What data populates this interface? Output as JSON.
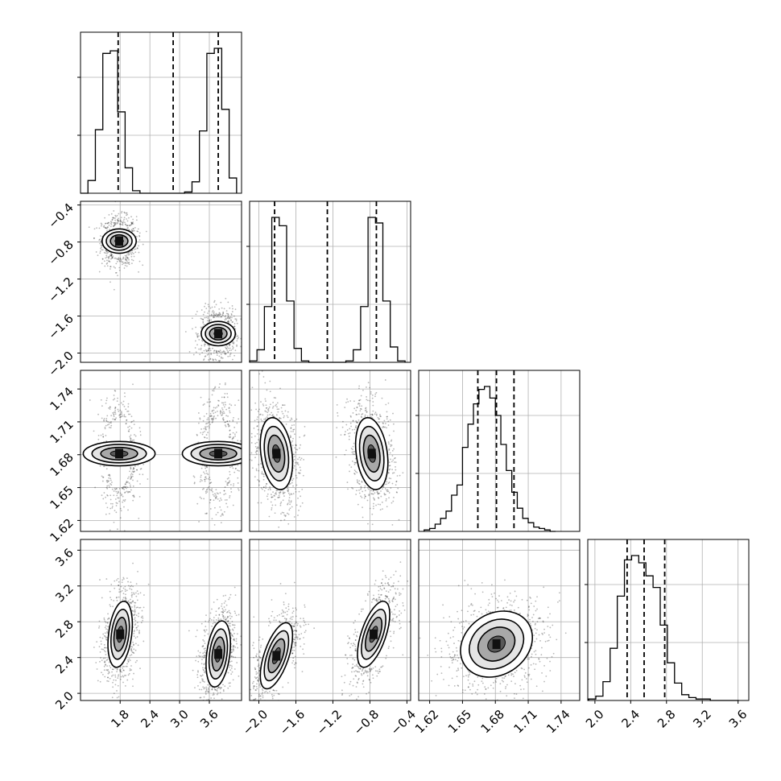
{
  "chart_data": {
    "type": "corner",
    "grid": true,
    "parameters": [
      {
        "index": 0,
        "range": [
          1.0,
          4.25
        ],
        "ticks": [
          "1.8",
          "2.4",
          "3.0",
          "3.6"
        ],
        "tick_values": [
          1.8,
          2.4,
          3.0,
          3.6
        ],
        "histogram": {
          "bin_edges": [
            1.0,
            1.15,
            1.3,
            1.45,
            1.6,
            1.75,
            1.9,
            2.05,
            2.2,
            2.35,
            2.5,
            2.65,
            2.8,
            2.95,
            3.1,
            3.25,
            3.4,
            3.55,
            3.7,
            3.85,
            4.0,
            4.15
          ],
          "counts": [
            0,
            0.1,
            0.5,
            1.1,
            1.12,
            0.64,
            0.2,
            0.02,
            0,
            0,
            0,
            0,
            0,
            0,
            0.01,
            0.09,
            0.49,
            1.1,
            1.14,
            0.66,
            0.12
          ],
          "quantiles": [
            1.76,
            2.87,
            3.78
          ]
        }
      },
      {
        "index": 1,
        "range": [
          -2.1,
          -0.36
        ],
        "ticks": [
          "−2.0",
          "−1.6",
          "−1.2",
          "−0.8",
          "−0.4"
        ],
        "tick_values": [
          -2.0,
          -1.6,
          -1.2,
          -0.8,
          -0.4
        ],
        "histogram": {
          "bin_edges": [
            -2.1,
            -2.02,
            -1.94,
            -1.86,
            -1.78,
            -1.7,
            -1.62,
            -1.54,
            -1.46,
            -1.38,
            -1.3,
            -1.22,
            -1.14,
            -1.06,
            -0.98,
            -0.9,
            -0.82,
            -0.74,
            -0.66,
            -0.58,
            -0.5,
            -0.42
          ],
          "counts": [
            0.01,
            0.09,
            0.4,
            1.04,
            0.98,
            0.44,
            0.1,
            0.01,
            0,
            0,
            0,
            0,
            0,
            0.01,
            0.09,
            0.4,
            1.04,
            1.0,
            0.44,
            0.11,
            0.01
          ],
          "quantiles": [
            -1.83,
            -1.26,
            -0.73
          ]
        }
      },
      {
        "index": 2,
        "range": [
          1.61,
          1.757
        ],
        "ticks": [
          "1.62",
          "1.65",
          "1.68",
          "1.71",
          "1.74"
        ],
        "tick_values": [
          1.62,
          1.65,
          1.68,
          1.71,
          1.74
        ],
        "histogram": {
          "bin_edges": [
            1.615,
            1.62,
            1.625,
            1.63,
            1.635,
            1.64,
            1.645,
            1.65,
            1.655,
            1.66,
            1.665,
            1.67,
            1.675,
            1.68,
            1.685,
            1.69,
            1.695,
            1.7,
            1.705,
            1.71,
            1.715,
            1.72,
            1.725,
            1.73,
            1.735
          ],
          "counts": [
            0.01,
            0.02,
            0.05,
            0.09,
            0.14,
            0.25,
            0.32,
            0.58,
            0.74,
            0.88,
            0.98,
            1.0,
            0.92,
            0.8,
            0.6,
            0.42,
            0.27,
            0.16,
            0.09,
            0.06,
            0.03,
            0.02,
            0.01,
            0
          ],
          "quantiles": [
            1.664,
            1.681,
            1.697
          ]
        }
      },
      {
        "index": 3,
        "range": [
          1.92,
          3.72
        ],
        "ticks": [
          "2.0",
          "2.4",
          "2.8",
          "3.2",
          "3.6"
        ],
        "tick_values": [
          2.0,
          2.4,
          2.8,
          3.2,
          3.6
        ],
        "histogram": {
          "bin_edges": [
            1.93,
            2.01,
            2.09,
            2.17,
            2.25,
            2.33,
            2.41,
            2.49,
            2.57,
            2.65,
            2.73,
            2.81,
            2.89,
            2.97,
            3.05,
            3.13,
            3.21,
            3.29,
            3.37,
            3.45,
            3.53,
            3.61
          ],
          "counts": [
            0.01,
            0.03,
            0.13,
            0.36,
            0.72,
            0.97,
            1.0,
            0.95,
            0.86,
            0.78,
            0.52,
            0.26,
            0.12,
            0.04,
            0.02,
            0.01,
            0.01,
            0,
            0,
            0,
            0
          ],
          "quantiles": [
            2.36,
            2.55,
            2.78
          ]
        }
      }
    ],
    "pairs": [
      {
        "row": 1,
        "col": 0,
        "blobs": [
          {
            "mx": 1.78,
            "my": -0.79,
            "sx": 0.12,
            "sy": 0.09,
            "rho": 0.0
          },
          {
            "mx": 3.78,
            "my": -1.79,
            "sx": 0.12,
            "sy": 0.09,
            "rho": 0.0
          }
        ]
      },
      {
        "row": 2,
        "col": 0,
        "blobs": [
          {
            "mx": 1.78,
            "my": 1.681,
            "sx": 0.12,
            "sy": 0.016,
            "rho": 0.0
          },
          {
            "mx": 3.78,
            "my": 1.681,
            "sx": 0.12,
            "sy": 0.016,
            "rho": 0.0
          }
        ]
      },
      {
        "row": 2,
        "col": 1,
        "blobs": [
          {
            "mx": -1.81,
            "my": 1.681,
            "sx": 0.085,
            "sy": 0.016,
            "rho": -0.25
          },
          {
            "mx": -0.78,
            "my": 1.681,
            "sx": 0.085,
            "sy": 0.016,
            "rho": -0.25
          }
        ]
      },
      {
        "row": 3,
        "col": 0,
        "blobs": [
          {
            "mx": 1.8,
            "my": 2.66,
            "sx": 0.12,
            "sy": 0.18,
            "rho": 0.3
          },
          {
            "mx": 3.78,
            "my": 2.44,
            "sx": 0.12,
            "sy": 0.18,
            "rho": 0.3
          }
        ]
      },
      {
        "row": 3,
        "col": 1,
        "blobs": [
          {
            "mx": -1.81,
            "my": 2.42,
            "sx": 0.085,
            "sy": 0.18,
            "rho": 0.6
          },
          {
            "mx": -0.76,
            "my": 2.66,
            "sx": 0.085,
            "sy": 0.18,
            "rho": 0.6
          }
        ]
      },
      {
        "row": 3,
        "col": 2,
        "blobs": [
          {
            "mx": 1.681,
            "my": 2.55,
            "sx": 0.016,
            "sy": 0.18,
            "rho": 0.2
          }
        ]
      }
    ]
  }
}
